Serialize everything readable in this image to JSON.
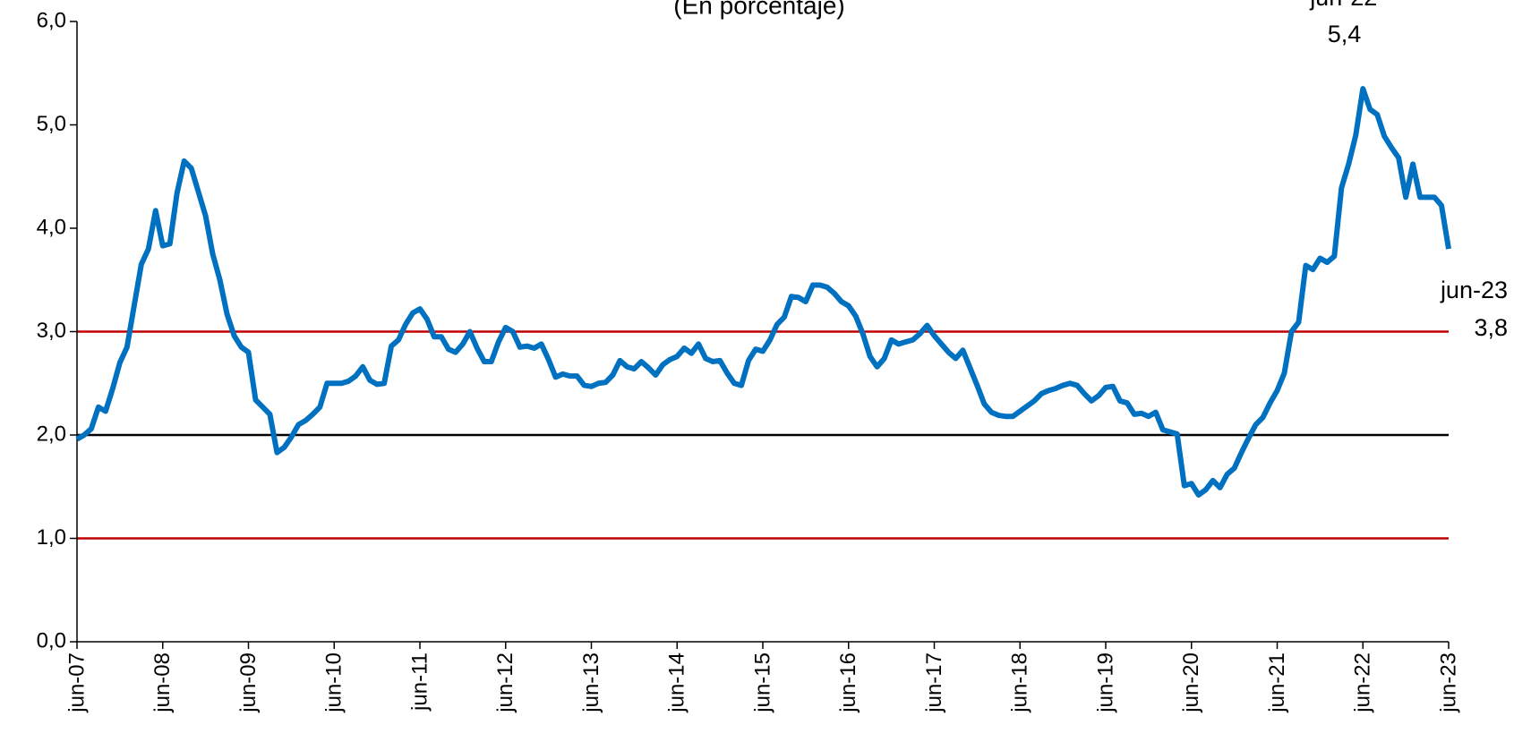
{
  "chart_data": {
    "type": "line",
    "subtitle": "(En porcentaje)",
    "color": "#0070c0",
    "categories": [
      "jun-07",
      null,
      null,
      null,
      null,
      null,
      null,
      null,
      null,
      null,
      null,
      null,
      "jun-08",
      null,
      null,
      null,
      null,
      null,
      null,
      null,
      null,
      null,
      null,
      null,
      "jun-09",
      null,
      null,
      null,
      null,
      null,
      null,
      null,
      null,
      null,
      null,
      null,
      "jun-10",
      null,
      null,
      null,
      null,
      null,
      null,
      null,
      null,
      null,
      null,
      null,
      "jun-11",
      null,
      null,
      null,
      null,
      null,
      null,
      null,
      null,
      null,
      null,
      null,
      "jun-12",
      null,
      null,
      null,
      null,
      null,
      null,
      null,
      null,
      null,
      null,
      null,
      "jun-13",
      null,
      null,
      null,
      null,
      null,
      null,
      null,
      null,
      null,
      null,
      null,
      "jun-14",
      null,
      null,
      null,
      null,
      null,
      null,
      null,
      null,
      null,
      null,
      null,
      "jun-15",
      null,
      null,
      null,
      null,
      null,
      null,
      null,
      null,
      null,
      null,
      null,
      "jun-16",
      null,
      null,
      null,
      null,
      null,
      null,
      null,
      null,
      null,
      null,
      null,
      "jun-17",
      null,
      null,
      null,
      null,
      null,
      null,
      null,
      null,
      null,
      null,
      null,
      "jun-18",
      null,
      null,
      null,
      null,
      null,
      null,
      null,
      null,
      null,
      null,
      null,
      "jun-19",
      null,
      null,
      null,
      null,
      null,
      null,
      null,
      null,
      null,
      null,
      null,
      "jun-20",
      null,
      null,
      null,
      null,
      null,
      null,
      null,
      null,
      null,
      null,
      null,
      "jun-21",
      null,
      null,
      null,
      null,
      null,
      null,
      null,
      null,
      null,
      null,
      null,
      "jun-22",
      null,
      null,
      null,
      null,
      null,
      null,
      null,
      null,
      null,
      null,
      null,
      "jun-23"
    ],
    "values": [
      1.96,
      2.0,
      2.06,
      2.27,
      2.23,
      2.45,
      2.7,
      2.85,
      3.25,
      3.65,
      3.8,
      4.17,
      3.83,
      3.85,
      4.34,
      4.65,
      4.58,
      4.35,
      4.12,
      3.75,
      3.5,
      3.17,
      2.96,
      2.85,
      2.8,
      2.34,
      2.27,
      2.2,
      1.83,
      1.88,
      1.98,
      2.1,
      2.14,
      2.2,
      2.27,
      2.5,
      2.5,
      2.5,
      2.52,
      2.57,
      2.66,
      2.53,
      2.49,
      2.5,
      2.86,
      2.92,
      3.07,
      3.18,
      3.22,
      3.12,
      2.95,
      2.95,
      2.83,
      2.8,
      2.88,
      3.0,
      2.84,
      2.71,
      2.71,
      2.9,
      3.04,
      3.0,
      2.85,
      2.86,
      2.84,
      2.88,
      2.73,
      2.56,
      2.59,
      2.57,
      2.57,
      2.48,
      2.47,
      2.5,
      2.51,
      2.58,
      2.72,
      2.66,
      2.64,
      2.71,
      2.65,
      2.58,
      2.68,
      2.73,
      2.76,
      2.84,
      2.79,
      2.88,
      2.74,
      2.71,
      2.72,
      2.6,
      2.5,
      2.48,
      2.72,
      2.83,
      2.81,
      2.92,
      3.07,
      3.14,
      3.34,
      3.33,
      3.29,
      3.45,
      3.45,
      3.43,
      3.37,
      3.29,
      3.25,
      3.15,
      2.98,
      2.76,
      2.66,
      2.74,
      2.92,
      2.88,
      2.9,
      2.92,
      2.98,
      3.06,
      2.96,
      2.88,
      2.8,
      2.74,
      2.82,
      2.65,
      2.48,
      2.3,
      2.22,
      2.19,
      2.18,
      2.18,
      2.23,
      2.28,
      2.33,
      2.4,
      2.43,
      2.45,
      2.48,
      2.5,
      2.48,
      2.4,
      2.33,
      2.38,
      2.46,
      2.47,
      2.33,
      2.31,
      2.2,
      2.21,
      2.18,
      2.22,
      2.05,
      2.03,
      2.01,
      1.51,
      1.53,
      1.42,
      1.47,
      1.56,
      1.49,
      1.62,
      1.68,
      1.83,
      1.97,
      2.1,
      2.17,
      2.31,
      2.43,
      2.6,
      3.0,
      3.09,
      3.64,
      3.6,
      3.71,
      3.67,
      3.73,
      4.39,
      4.62,
      4.9,
      5.35,
      5.15,
      5.1,
      4.89,
      4.78,
      4.68,
      4.3,
      4.62,
      4.3,
      4.3,
      4.3,
      4.22,
      3.8
    ],
    "value_labels": [
      null,
      null,
      null,
      null,
      null,
      null,
      null,
      null,
      null,
      null,
      null,
      null,
      null,
      null,
      null,
      null,
      null,
      null,
      null,
      null,
      null,
      null,
      null,
      null,
      null,
      null,
      null,
      null,
      null,
      null,
      null,
      null,
      null,
      null,
      null,
      null,
      null,
      null,
      null,
      null,
      null,
      null,
      null,
      null,
      null,
      null,
      null,
      null,
      null,
      null,
      null,
      null,
      null,
      null,
      null,
      null,
      null,
      null,
      null,
      null,
      null,
      null,
      null,
      null,
      null,
      null,
      null,
      null,
      null,
      null,
      null,
      null,
      null,
      null,
      null,
      null,
      null,
      null,
      null,
      null,
      null,
      null,
      null,
      null,
      null,
      null,
      null,
      null,
      null,
      null,
      null,
      null,
      null,
      null,
      null,
      null,
      null,
      null,
      null,
      null,
      null,
      null,
      null,
      null,
      null,
      null,
      null,
      null,
      null,
      null,
      null,
      null,
      null,
      null,
      null,
      null,
      null,
      null,
      null,
      null,
      null,
      null,
      null,
      null,
      null,
      null,
      null,
      null,
      null,
      null,
      null,
      null,
      null,
      null,
      null,
      null,
      null,
      null,
      null,
      null,
      null,
      null,
      null,
      null,
      null,
      null,
      null,
      null,
      null,
      null,
      null,
      null,
      null,
      null,
      null,
      null,
      null,
      null,
      null,
      null,
      null,
      null,
      null,
      null,
      null,
      null,
      null,
      null,
      null,
      null,
      null,
      null,
      null,
      null,
      null,
      null,
      null,
      null,
      null,
      null,
      "5,4",
      null,
      null,
      null,
      null,
      null,
      null,
      null,
      null,
      null,
      null,
      null,
      "3,8"
    ],
    "ylim": [
      0,
      6
    ],
    "yticks": [
      {
        "value": 0,
        "label": "0,0"
      },
      {
        "value": 1,
        "label": "1,0"
      },
      {
        "value": 2,
        "label": "2,0"
      },
      {
        "value": 3,
        "label": "3,0"
      },
      {
        "value": 4,
        "label": "4,0"
      },
      {
        "value": 5,
        "label": "5,0"
      },
      {
        "value": 6,
        "label": "6,0"
      }
    ],
    "reference_lines": [
      {
        "value": 1,
        "color": "#c00000"
      },
      {
        "value": 3,
        "color": "#c00000"
      },
      {
        "value": 2,
        "color": "#000000"
      }
    ]
  }
}
